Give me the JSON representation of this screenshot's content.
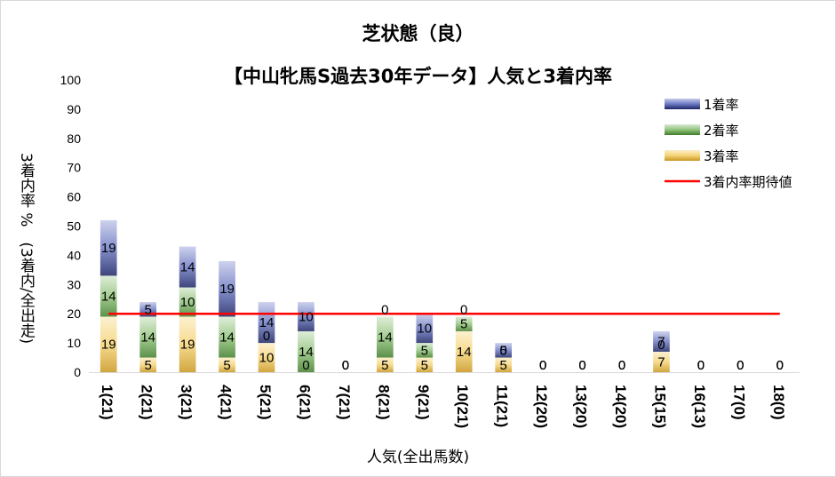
{
  "chart_data": {
    "type": "bar",
    "title": "芝状態（良）",
    "subtitle": "【中山牝馬S過去30年データ】人気と3着内率",
    "xlabel": "人気(全出馬数)",
    "ylabel": "3着内率 %　(3着内/全出走)",
    "ylim": [
      0,
      100
    ],
    "yticks": [
      "0",
      "10",
      "20",
      "30",
      "40",
      "50",
      "60",
      "70",
      "80",
      "90",
      "100"
    ],
    "categories": [
      "1(21)",
      "2(21)",
      "3(21)",
      "4(21)",
      "5(21)",
      "6(21)",
      "7(21)",
      "8(21)",
      "9(21)",
      "10(21)",
      "11(21)",
      "12(20)",
      "13(20)",
      "14(20)",
      "15(15)",
      "16(13)",
      "17(0)",
      "18(0)"
    ],
    "series": [
      {
        "name": "3着率",
        "color": "#d4a437",
        "values": [
          19,
          5,
          19,
          5,
          10,
          0,
          0,
          5,
          5,
          14,
          5,
          0,
          0,
          0,
          7,
          0,
          0,
          0
        ]
      },
      {
        "name": "2着率",
        "color": "#6aa84f",
        "values": [
          14,
          14,
          10,
          14,
          0,
          14,
          0,
          14,
          5,
          5,
          0,
          0,
          0,
          0,
          0,
          0,
          0,
          0
        ]
      },
      {
        "name": "1着率",
        "color": "#2e3a87",
        "values": [
          19,
          5,
          14,
          19,
          14,
          10,
          0,
          0,
          10,
          0,
          5,
          0,
          0,
          0,
          7,
          0,
          0,
          0
        ]
      }
    ],
    "lines": [
      {
        "name": "3着内率期待値",
        "color": "#ff0000",
        "value": 20
      }
    ],
    "legend_position": "top-right",
    "grid": false
  }
}
